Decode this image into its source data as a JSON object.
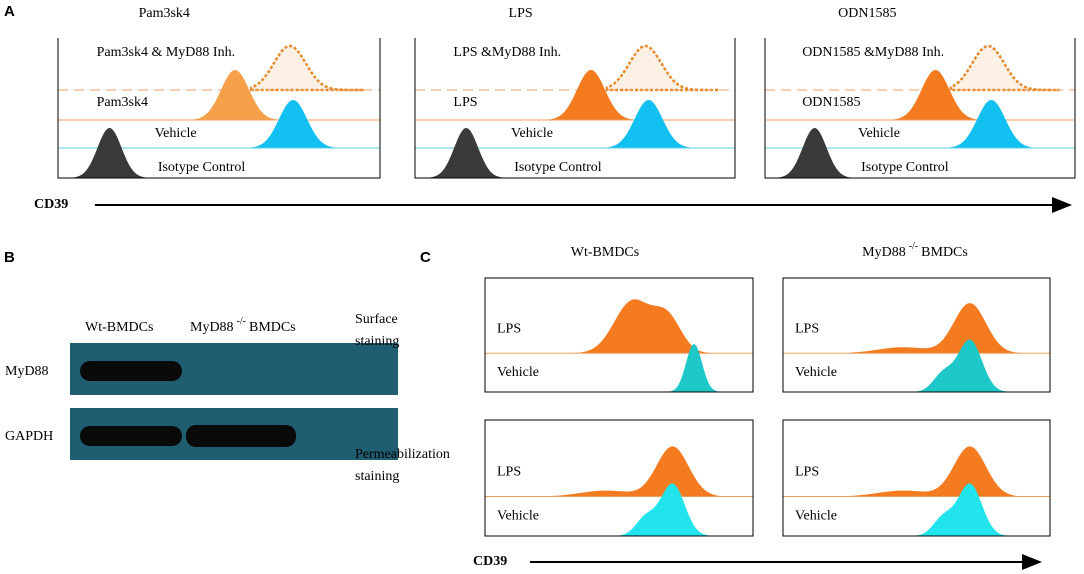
{
  "panel_a": {
    "label": "A",
    "panels": [
      {
        "title": "Pam3sk4",
        "labels": [
          "Pam3sk4 & MyD88 Inh.",
          "Pam3sk4",
          "Vehicle",
          "Isotype  Control"
        ]
      },
      {
        "title": "LPS",
        "labels": [
          "LPS &MyD88 Inh.",
          "LPS",
          "Vehicle",
          "Isotype  Control"
        ]
      },
      {
        "title": "ODN1585",
        "labels": [
          "ODN1585 &MyD88 Inh.",
          "ODN1585",
          "Vehicle",
          "Isotype  Control"
        ]
      }
    ],
    "axis": "CD39"
  },
  "panel_b": {
    "label": "B",
    "columns": [
      {
        "name": "Wt-BMDCs"
      },
      {
        "name": "MyD88",
        "sup": "-/-",
        "suffix": "BMDCs"
      }
    ],
    "rows": [
      "MyD88",
      "GAPDH"
    ]
  },
  "panel_c": {
    "label": "C",
    "columns": [
      {
        "name": "Wt-BMDCs"
      },
      {
        "name": "MyD88",
        "sup": "-/-",
        "suffix": "BMDCs"
      }
    ],
    "rows": [
      {
        "lines": [
          "Surface",
          "staining"
        ]
      },
      {
        "lines": [
          "Permeabilization",
          "staining"
        ]
      }
    ],
    "labels": [
      "LPS",
      "Vehicle"
    ],
    "axis": "CD39"
  }
}
